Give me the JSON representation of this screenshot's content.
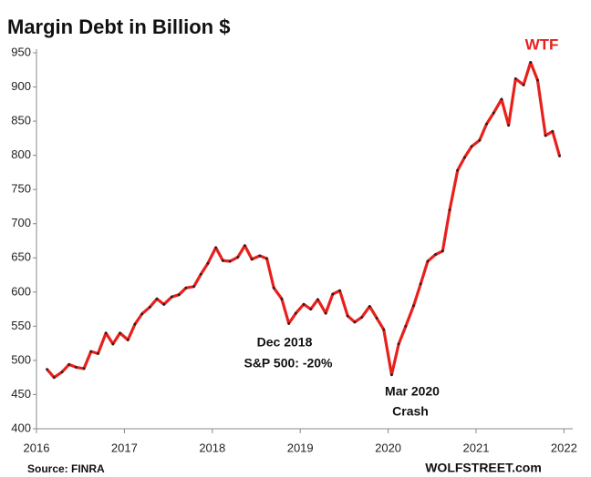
{
  "chart_data": {
    "type": "line",
    "title": "Margin Debt in Billion $",
    "x": [
      2016.12,
      2016.2,
      2016.29,
      2016.37,
      2016.45,
      2016.54,
      2016.62,
      2016.7,
      2016.79,
      2016.87,
      2016.95,
      2017.04,
      2017.12,
      2017.2,
      2017.29,
      2017.37,
      2017.45,
      2017.54,
      2017.62,
      2017.7,
      2017.79,
      2017.87,
      2017.95,
      2018.04,
      2018.12,
      2018.2,
      2018.29,
      2018.37,
      2018.45,
      2018.54,
      2018.62,
      2018.7,
      2018.79,
      2018.87,
      2018.95,
      2019.04,
      2019.12,
      2019.2,
      2019.29,
      2019.37,
      2019.45,
      2019.54,
      2019.62,
      2019.7,
      2019.79,
      2019.87,
      2019.95,
      2020.04,
      2020.12,
      2020.2,
      2020.29,
      2020.37,
      2020.45,
      2020.54,
      2020.62,
      2020.7,
      2020.79,
      2020.87,
      2020.95,
      2021.04,
      2021.12,
      2021.2,
      2021.29,
      2021.37,
      2021.45,
      2021.54,
      2021.62,
      2021.7,
      2021.79,
      2021.87,
      2021.95
    ],
    "series": [
      {
        "name": "Margin Debt",
        "color": "#e8201c",
        "values": [
          487,
          475,
          483,
          494,
          490,
          488,
          513,
          510,
          540,
          524,
          540,
          530,
          553,
          568,
          578,
          590,
          582,
          593,
          596,
          606,
          608,
          626,
          642,
          665,
          646,
          645,
          651,
          668,
          648,
          653,
          649,
          606,
          590,
          554,
          569,
          582,
          575,
          589,
          569,
          597,
          602,
          565,
          556,
          563,
          579,
          562,
          545,
          479,
          524,
          550,
          580,
          612,
          645,
          655,
          660,
          720,
          778,
          797,
          813,
          822,
          846,
          862,
          882,
          844,
          912,
          903,
          936,
          910,
          829,
          835,
          799
        ]
      }
    ],
    "xlim": [
      2016,
      2022.1
    ],
    "xticks": [
      2016,
      2017,
      2018,
      2019,
      2020,
      2021,
      2022
    ],
    "ylim": [
      400,
      950
    ],
    "yticks": [
      400,
      450,
      500,
      550,
      600,
      650,
      700,
      750,
      800,
      850,
      900,
      950
    ],
    "grid": false,
    "annotations": [
      "WTF",
      "Dec 2018",
      "S&P 500:  -20%",
      "Mar 2020",
      "Crash"
    ],
    "source": "Source: FINRA",
    "brand": "WOLFSTREET.com"
  }
}
